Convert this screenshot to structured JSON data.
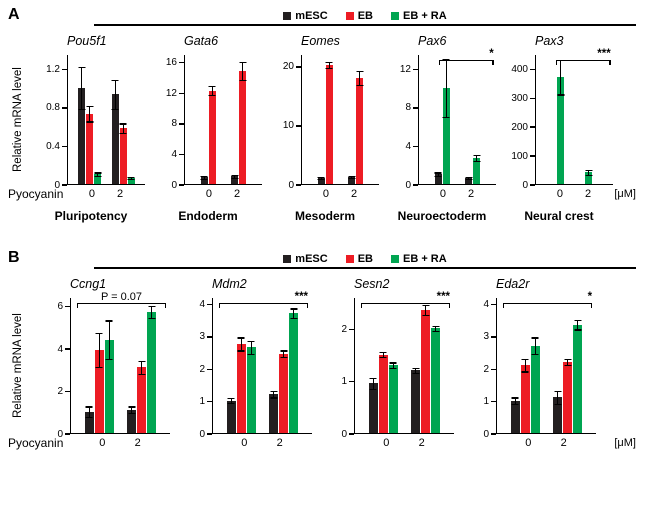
{
  "ylabel": "Relative mRNA level",
  "xaxis": {
    "title": "Pyocyanin",
    "unit": "[μM]",
    "groups": [
      "0",
      "2"
    ]
  },
  "panels": {
    "A": {
      "letter": "A"
    },
    "B": {
      "letter": "B"
    }
  },
  "colors": {
    "mESC": "#231f20",
    "EB": "#ed1c24",
    "EB + RA": "#00a551",
    "axis": "#000000"
  },
  "legend": {
    "items": [
      {
        "label": "mESC",
        "color": "#231f20"
      },
      {
        "label": "EB",
        "color": "#ed1c24"
      },
      {
        "label": "EB + RA",
        "color": "#00a551"
      }
    ]
  },
  "chart_data": [
    {
      "panel": "A",
      "type": "bar",
      "gene": "Pou5f1",
      "category": "Pluripotency",
      "ylim": [
        0,
        1.35
      ],
      "yticks": [
        0,
        0.4,
        0.8,
        1.2
      ],
      "groups": [
        "0",
        "2"
      ],
      "series": [
        {
          "name": "mESC",
          "values": [
            1.0,
            0.93
          ],
          "errors": [
            0.22,
            0.15
          ]
        },
        {
          "name": "EB",
          "values": [
            0.73,
            0.58
          ],
          "errors": [
            0.08,
            0.05
          ]
        },
        {
          "name": "EB + RA",
          "values": [
            0.1,
            0.06
          ],
          "errors": [
            0.02,
            0.01
          ]
        }
      ],
      "sig": null
    },
    {
      "panel": "A",
      "type": "bar",
      "gene": "Gata6",
      "category": "Endoderm",
      "ylim": [
        0,
        17
      ],
      "yticks": [
        0,
        4,
        8,
        12,
        16
      ],
      "groups": [
        "0",
        "2"
      ],
      "series": [
        {
          "name": "mESC",
          "values": [
            0.9,
            1.0
          ],
          "errors": [
            0.2,
            0.2
          ]
        },
        {
          "name": "EB",
          "values": [
            12.2,
            14.8
          ],
          "errors": [
            0.6,
            1.2
          ]
        },
        {
          "name": "EB + RA",
          "values": [
            null,
            null
          ],
          "errors": [
            null,
            null
          ]
        }
      ],
      "sig": null
    },
    {
      "panel": "A",
      "type": "bar",
      "gene": "Eomes",
      "category": "Mesoderm",
      "ylim": [
        0,
        22
      ],
      "yticks": [
        0,
        10,
        20
      ],
      "groups": [
        "0",
        "2"
      ],
      "series": [
        {
          "name": "mESC",
          "values": [
            1.0,
            1.2
          ],
          "errors": [
            0.2,
            0.2
          ]
        },
        {
          "name": "EB",
          "values": [
            20.2,
            18.0
          ],
          "errors": [
            0.5,
            1.2
          ]
        },
        {
          "name": "EB + RA",
          "values": [
            null,
            null
          ],
          "errors": [
            null,
            null
          ]
        }
      ],
      "sig": null
    },
    {
      "panel": "A",
      "type": "bar",
      "gene": "Pax6",
      "category": "Neuroectoderm",
      "ylim": [
        0,
        13.5
      ],
      "yticks": [
        0,
        4,
        8,
        12
      ],
      "groups": [
        "0",
        "2"
      ],
      "series": [
        {
          "name": "mESC",
          "values": [
            1.0,
            0.6
          ],
          "errors": [
            0.2,
            0.1
          ]
        },
        {
          "name": "EB",
          "values": [
            null,
            null
          ],
          "errors": [
            null,
            null
          ]
        },
        {
          "name": "EB + RA",
          "values": [
            10.0,
            2.7
          ],
          "errors": [
            3.0,
            0.3
          ]
        }
      ],
      "sig": {
        "label": "*",
        "align": "right"
      }
    },
    {
      "panel": "A",
      "type": "bar",
      "gene": "Pax3",
      "category": "Neural crest",
      "ylim": [
        0,
        450
      ],
      "yticks": [
        0,
        100,
        200,
        300,
        400
      ],
      "groups": [
        "0",
        "2"
      ],
      "series": [
        {
          "name": "mESC",
          "values": [
            null,
            null
          ],
          "errors": [
            null,
            null
          ]
        },
        {
          "name": "EB",
          "values": [
            null,
            null
          ],
          "errors": [
            null,
            null
          ]
        },
        {
          "name": "EB + RA",
          "values": [
            370,
            40
          ],
          "errors": [
            60,
            8
          ]
        }
      ],
      "sig": {
        "label": "***",
        "align": "right"
      }
    },
    {
      "panel": "B",
      "type": "bar",
      "gene": "Ccng1",
      "category": null,
      "ylim": [
        0,
        6.4
      ],
      "yticks": [
        0,
        2,
        4,
        6
      ],
      "groups": [
        "0",
        "2"
      ],
      "series": [
        {
          "name": "mESC",
          "values": [
            1.0,
            1.1
          ],
          "errors": [
            0.25,
            0.15
          ]
        },
        {
          "name": "EB",
          "values": [
            3.9,
            3.1
          ],
          "errors": [
            0.8,
            0.3
          ]
        },
        {
          "name": "EB + RA",
          "values": [
            4.4,
            5.7
          ],
          "errors": [
            0.9,
            0.3
          ]
        }
      ],
      "sig": {
        "label": "P = 0.07",
        "align": "center"
      }
    },
    {
      "panel": "B",
      "type": "bar",
      "gene": "Mdm2",
      "category": null,
      "ylim": [
        0,
        4.2
      ],
      "yticks": [
        0,
        1,
        2,
        3,
        4
      ],
      "groups": [
        "0",
        "2"
      ],
      "series": [
        {
          "name": "mESC",
          "values": [
            1.0,
            1.2
          ],
          "errors": [
            0.08,
            0.1
          ]
        },
        {
          "name": "EB",
          "values": [
            2.75,
            2.45
          ],
          "errors": [
            0.2,
            0.1
          ]
        },
        {
          "name": "EB + RA",
          "values": [
            2.65,
            3.7
          ],
          "errors": [
            0.2,
            0.15
          ]
        }
      ],
      "sig": {
        "label": "***",
        "align": "right"
      }
    },
    {
      "panel": "B",
      "type": "bar",
      "gene": "Sesn2",
      "category": null,
      "ylim": [
        0,
        2.6
      ],
      "yticks": [
        0,
        1,
        2
      ],
      "groups": [
        "0",
        "2"
      ],
      "series": [
        {
          "name": "mESC",
          "values": [
            0.95,
            1.2
          ],
          "errors": [
            0.1,
            0.05
          ]
        },
        {
          "name": "EB",
          "values": [
            1.5,
            2.35
          ],
          "errors": [
            0.05,
            0.1
          ]
        },
        {
          "name": "EB + RA",
          "values": [
            1.3,
            2.0
          ],
          "errors": [
            0.05,
            0.05
          ]
        }
      ],
      "sig": {
        "label": "***",
        "align": "right"
      }
    },
    {
      "panel": "B",
      "type": "bar",
      "gene": "Eda2r",
      "category": null,
      "ylim": [
        0,
        4.2
      ],
      "yticks": [
        0,
        1,
        2,
        3,
        4
      ],
      "groups": [
        "0",
        "2"
      ],
      "series": [
        {
          "name": "mESC",
          "values": [
            1.0,
            1.1
          ],
          "errors": [
            0.1,
            0.2
          ]
        },
        {
          "name": "EB",
          "values": [
            2.1,
            2.2
          ],
          "errors": [
            0.2,
            0.1
          ]
        },
        {
          "name": "EB + RA",
          "values": [
            2.7,
            3.35
          ],
          "errors": [
            0.25,
            0.15
          ]
        }
      ],
      "sig": {
        "label": "*",
        "align": "right"
      }
    }
  ]
}
